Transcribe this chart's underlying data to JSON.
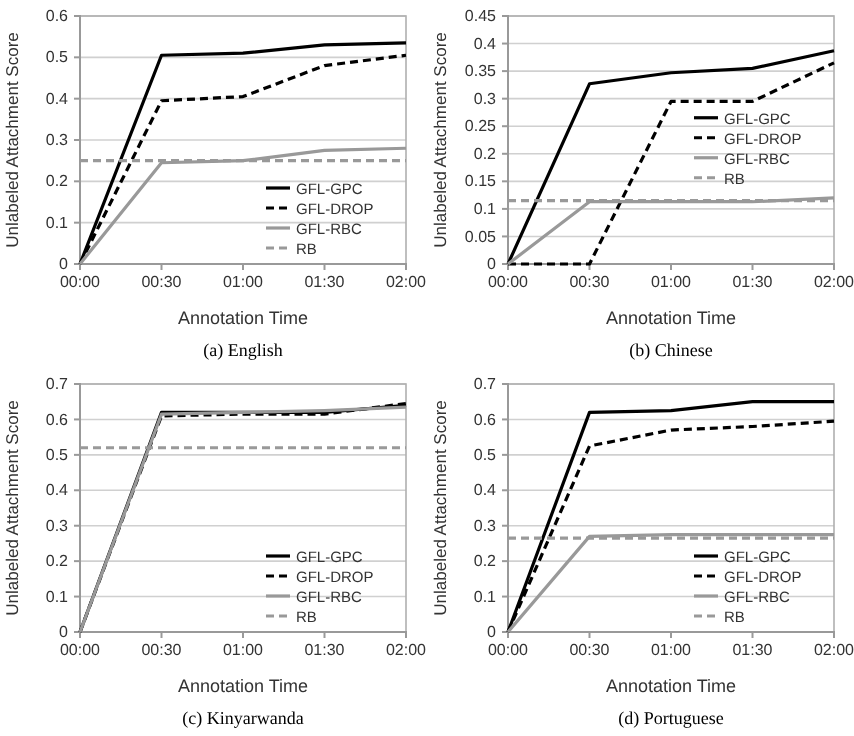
{
  "chart_data": [
    {
      "type": "line",
      "title": "(a) English",
      "xlabel": "Annotation Time",
      "ylabel": "Unlabeled Attachment Score",
      "categories": [
        "00:00",
        "00:30",
        "01:00",
        "01:30",
        "02:00"
      ],
      "ylim": [
        0,
        0.6
      ],
      "yticks": [
        0,
        0.1,
        0.2,
        0.3,
        0.4,
        0.5,
        0.6
      ],
      "grid": "y",
      "legend": "bottom right",
      "marker": "none",
      "series": [
        {
          "name": "GFL-GPC",
          "color": "#000000",
          "line_style": "solid",
          "values": [
            0,
            0.505,
            0.51,
            0.53,
            0.535
          ]
        },
        {
          "name": "GFL-DROP",
          "color": "#000000",
          "line_style": "dashed",
          "values": [
            0,
            0.395,
            0.405,
            0.48,
            0.505
          ]
        },
        {
          "name": "GFL-RBC",
          "color": "#999999",
          "line_style": "solid",
          "values": [
            0,
            0.245,
            0.25,
            0.275,
            0.28
          ]
        },
        {
          "name": "RB",
          "color": "#999999",
          "line_style": "dashed",
          "values": [
            0.25,
            0.25,
            0.25,
            0.25,
            0.25
          ]
        }
      ]
    },
    {
      "type": "line",
      "title": "(b) Chinese",
      "xlabel": "Annotation Time",
      "ylabel": "Unlabeled Attachment Score",
      "categories": [
        "00:00",
        "00:30",
        "01:00",
        "01:30",
        "02:00"
      ],
      "ylim": [
        0,
        0.45
      ],
      "yticks": [
        0,
        0.05,
        0.1,
        0.15,
        0.2,
        0.25,
        0.3,
        0.35,
        0.4,
        0.45
      ],
      "grid": "y",
      "legend": "right",
      "marker": "none",
      "series": [
        {
          "name": "GFL-GPC",
          "color": "#000000",
          "line_style": "solid",
          "values": [
            0,
            0.327,
            0.347,
            0.355,
            0.387
          ]
        },
        {
          "name": "GFL-DROP",
          "color": "#000000",
          "line_style": "dashed",
          "values": [
            0,
            0,
            0.295,
            0.295,
            0.365
          ]
        },
        {
          "name": "GFL-RBC",
          "color": "#999999",
          "line_style": "solid",
          "values": [
            0,
            0.113,
            0.113,
            0.113,
            0.12
          ]
        },
        {
          "name": "RB",
          "color": "#999999",
          "line_style": "dashed",
          "values": [
            0.115,
            0.115,
            0.115,
            0.115,
            0.115
          ]
        }
      ]
    },
    {
      "type": "line",
      "title": "(c) Kinyarwanda",
      "xlabel": "Annotation Time",
      "ylabel": "Unlabeled Attachment Score",
      "categories": [
        "00:00",
        "00:30",
        "01:00",
        "01:30",
        "02:00"
      ],
      "ylim": [
        0,
        0.7
      ],
      "yticks": [
        0,
        0.1,
        0.2,
        0.3,
        0.4,
        0.5,
        0.6,
        0.7
      ],
      "grid": "y",
      "legend": "bottom right",
      "marker": "none",
      "series": [
        {
          "name": "GFL-GPC",
          "color": "#000000",
          "line_style": "solid",
          "values": [
            0,
            0.62,
            0.62,
            0.62,
            0.64
          ]
        },
        {
          "name": "GFL-DROP",
          "color": "#000000",
          "line_style": "dashed",
          "values": [
            0,
            0.61,
            0.615,
            0.615,
            0.645
          ]
        },
        {
          "name": "GFL-RBC",
          "color": "#999999",
          "line_style": "solid",
          "values": [
            0,
            0.615,
            0.62,
            0.625,
            0.635
          ]
        },
        {
          "name": "RB",
          "color": "#999999",
          "line_style": "dashed",
          "values": [
            0.52,
            0.52,
            0.52,
            0.52,
            0.52
          ]
        }
      ]
    },
    {
      "type": "line",
      "title": "(d) Portuguese",
      "xlabel": "Annotation Time",
      "ylabel": "Unlabeled Attachment Score",
      "categories": [
        "00:00",
        "00:30",
        "01:00",
        "01:30",
        "02:00"
      ],
      "ylim": [
        0,
        0.7
      ],
      "yticks": [
        0,
        0.1,
        0.2,
        0.3,
        0.4,
        0.5,
        0.6,
        0.7
      ],
      "grid": "y",
      "legend": "bottom right",
      "marker": "none",
      "series": [
        {
          "name": "GFL-GPC",
          "color": "#000000",
          "line_style": "solid",
          "values": [
            0,
            0.62,
            0.625,
            0.65,
            0.65
          ]
        },
        {
          "name": "GFL-DROP",
          "color": "#000000",
          "line_style": "dashed",
          "values": [
            0,
            0.525,
            0.57,
            0.58,
            0.595
          ]
        },
        {
          "name": "GFL-RBC",
          "color": "#999999",
          "line_style": "solid",
          "values": [
            0,
            0.27,
            0.275,
            0.275,
            0.275
          ]
        },
        {
          "name": "RB",
          "color": "#999999",
          "line_style": "dashed",
          "values": [
            0.265,
            0.265,
            0.265,
            0.265,
            0.265
          ]
        }
      ]
    }
  ]
}
